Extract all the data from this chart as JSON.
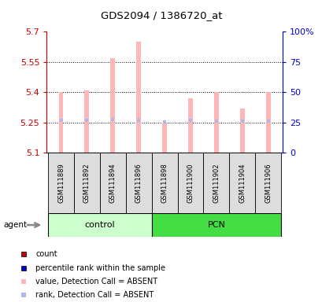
{
  "title": "GDS2094 / 1386720_at",
  "samples": [
    "GSM111889",
    "GSM111892",
    "GSM111894",
    "GSM111896",
    "GSM111898",
    "GSM111900",
    "GSM111902",
    "GSM111904",
    "GSM111906"
  ],
  "bar_values": [
    5.4,
    5.41,
    5.57,
    5.65,
    5.25,
    5.37,
    5.4,
    5.32,
    5.4
  ],
  "rank_values": [
    26.5,
    26.5,
    27.0,
    26.8,
    25.1,
    26.4,
    26.2,
    25.9,
    26.2
  ],
  "ymin": 5.1,
  "ymax": 5.7,
  "y2min": 0,
  "y2max": 100,
  "yticks": [
    5.1,
    5.25,
    5.4,
    5.55,
    5.7
  ],
  "ytick_labels": [
    "5.1",
    "5.25",
    "5.4",
    "5.55",
    "5.7"
  ],
  "y2ticks": [
    0,
    25,
    50,
    75,
    100
  ],
  "y2tick_labels": [
    "0",
    "25",
    "50",
    "75",
    "100%"
  ],
  "bar_color": "#FFB6B6",
  "rank_color": "#B0B8E8",
  "control_color": "#CCFFCC",
  "pcn_color": "#55EE55",
  "sample_bg_color": "#DDDDDD",
  "left_y_color": "#CC0000",
  "right_y_color": "#0000CC",
  "base_value": 5.1,
  "bar_width": 0.18,
  "groups_info": [
    {
      "label": "control",
      "start": 0,
      "end": 3,
      "color": "#CCFFCC"
    },
    {
      "label": "PCN",
      "start": 4,
      "end": 8,
      "color": "#44DD44"
    }
  ],
  "legend_items": [
    {
      "color": "#CC0000",
      "label": "count"
    },
    {
      "color": "#0000CC",
      "label": "percentile rank within the sample"
    },
    {
      "color": "#FFB6B6",
      "label": "value, Detection Call = ABSENT"
    },
    {
      "color": "#B0B8E8",
      "label": "rank, Detection Call = ABSENT"
    }
  ]
}
